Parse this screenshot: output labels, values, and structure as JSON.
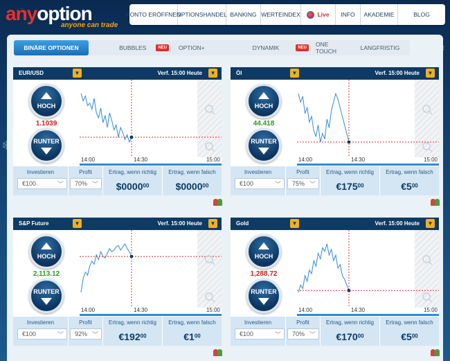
{
  "logo": {
    "name_prefix": "any",
    "name_suffix": "option",
    "tagline": "anyone can trade"
  },
  "nav": {
    "items": [
      "KONTO ERÖFFNEN",
      "OPTIONSHANDEL",
      "BANKING",
      "WERTEINDEX",
      "Live",
      "INFO",
      "AKADEMIE",
      "BLOG"
    ]
  },
  "tabs": {
    "binary": "BINÄRE OPTIONEN",
    "bubbles": "BUBBLES",
    "new_badge": "NEU",
    "option_plus": "OPTION+",
    "dynamik": "DYNAMIK",
    "one_touch": "ONE TOUCH",
    "langfristig": "LANGFRISTIG"
  },
  "labels": {
    "up": "HOCH",
    "down": "RUNTER",
    "invest": "Investieren",
    "profit": "Profit",
    "win": "Ertrag, wenn richtig",
    "lose": "Ertrag, wenn falsch",
    "time_start": "14:00",
    "time_mid": "14:30",
    "time_end": "15:00"
  },
  "colors": {
    "up_price": "#2d9a1c",
    "down_price": "#d0201d",
    "chart_line": "#2f8ad8",
    "expiry_line": "#e3302b"
  },
  "cards": [
    {
      "asset": "EUR/USD",
      "expiry": "Verf. 15:00 Heute",
      "price": "1.1039",
      "price_dir": "down",
      "amount": "€100",
      "profit": "70%",
      "win_main": "$0000",
      "win_cents": "00",
      "lose_main": "$0000",
      "lose_cents": "00",
      "series": [
        42,
        48,
        44,
        52,
        50,
        55,
        46,
        58,
        62,
        54,
        66,
        60,
        70,
        58,
        64,
        72,
        68,
        78,
        70,
        74,
        80,
        76,
        82,
        78
      ]
    },
    {
      "asset": "Öl",
      "expiry": "Verf. 15:00 Heute",
      "price": "44.418",
      "price_dir": "up",
      "amount": "€100",
      "profit": "75%",
      "win_main": "€175",
      "win_cents": "00",
      "lose_main": "€5",
      "lose_cents": "00",
      "series": [
        30,
        36,
        32,
        44,
        40,
        50,
        46,
        56,
        60,
        52,
        64,
        58,
        62,
        48,
        54,
        42,
        36,
        30,
        34,
        40,
        46,
        52,
        58,
        64
      ]
    },
    {
      "asset": "S&P Future",
      "expiry": "Verf. 15:00 Heute",
      "price": "2,113.12",
      "price_dir": "up",
      "amount": "€100",
      "profit": "92%",
      "win_main": "€192",
      "win_cents": "00",
      "lose_main": "€1",
      "lose_cents": "00",
      "series": [
        88,
        70,
        62,
        66,
        54,
        48,
        52,
        40,
        46,
        36,
        42,
        44,
        38,
        32,
        36,
        34,
        30,
        28,
        34,
        30,
        26,
        32,
        36,
        42
      ]
    },
    {
      "asset": "Gold",
      "expiry": "Verf. 15:00 Heute",
      "price": "1,288.72",
      "price_dir": "down",
      "amount": "€100",
      "profit": "70%",
      "win_main": "€170",
      "win_cents": "00",
      "lose_main": "€5",
      "lose_cents": "00",
      "series": [
        80,
        72,
        76,
        62,
        68,
        56,
        60,
        46,
        52,
        38,
        44,
        32,
        36,
        28,
        40,
        34,
        46,
        40,
        54,
        50,
        62,
        66,
        72,
        78
      ]
    }
  ]
}
